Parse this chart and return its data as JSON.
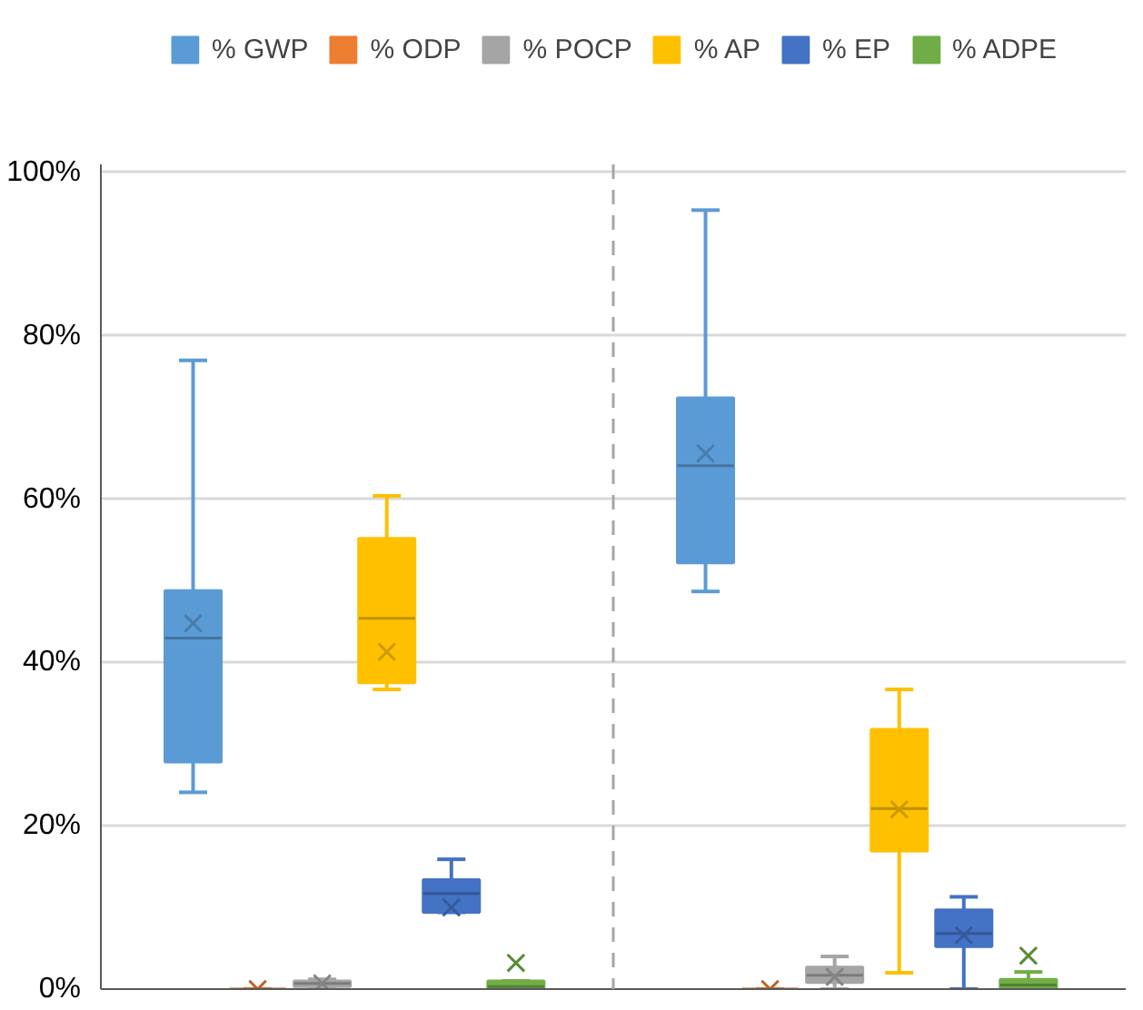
{
  "chart_data": {
    "type": "box",
    "categories": [
      null,
      null
    ],
    "ylim": [
      0,
      101
    ],
    "yticks": [
      {
        "value": 0,
        "label": "0%"
      },
      {
        "value": 20,
        "label": "20%"
      },
      {
        "value": 40,
        "label": "40%"
      },
      {
        "value": 60,
        "label": "60%"
      },
      {
        "value": 80,
        "label": "80%"
      },
      {
        "value": 100,
        "label": "100%"
      }
    ],
    "grid": "y",
    "legend": "top",
    "marker": "cross",
    "series": [
      {
        "name": "% GWP",
        "color": "#5b9bd5",
        "boxes": [
          {
            "low": 24.1,
            "q1": 27.8,
            "median": 43,
            "q3": 48.8,
            "high": 77,
            "mean": 44.8
          },
          {
            "low": 48.7,
            "q1": 52.2,
            "median": 64.1,
            "q3": 72.4,
            "high": 95.4,
            "mean": 65.6
          }
        ]
      },
      {
        "name": "% ODP",
        "color": "#ed7d31",
        "boxes": [
          {
            "low": 0,
            "q1": 0,
            "median": 0,
            "q3": 0,
            "high": 0,
            "mean": 0
          },
          {
            "low": 0,
            "q1": 0,
            "median": 0,
            "q3": 0,
            "high": 0,
            "mean": 0
          }
        ]
      },
      {
        "name": "% POCP",
        "color": "#a5a5a5",
        "boxes": [
          {
            "low": 0.3,
            "q1": 0.3,
            "median": 0.7,
            "q3": 1.0,
            "high": 1.2,
            "mean": 0.7
          },
          {
            "low": 0,
            "q1": 0.8,
            "median": 1.7,
            "q3": 2.7,
            "high": 4.0,
            "mean": 1.5
          }
        ]
      },
      {
        "name": "% AP",
        "color": "#ffc000",
        "boxes": [
          {
            "low": 36.7,
            "q1": 37.5,
            "median": 45.4,
            "q3": 55.2,
            "high": 60.4,
            "mean": 41.3
          },
          {
            "low": 2.0,
            "q1": 16.9,
            "median": 22.1,
            "q3": 31.8,
            "high": 36.7,
            "mean": 22.0
          }
        ]
      },
      {
        "name": "% EP",
        "color": "#4472c4",
        "boxes": [
          {
            "low": 9.4,
            "q1": 9.4,
            "median": 11.7,
            "q3": 13.4,
            "high": 15.9,
            "mean": 10.0
          },
          {
            "low": 0,
            "q1": 5.2,
            "median": 6.8,
            "q3": 9.7,
            "high": 11.3,
            "mean": 6.6
          }
        ]
      },
      {
        "name": "% ADPE",
        "color": "#70ad47",
        "boxes": [
          {
            "low": 0,
            "q1": 0,
            "median": 0.3,
            "q3": 1.0,
            "high": 1.0,
            "mean": 3.2
          },
          {
            "low": 0,
            "q1": 0,
            "median": 0.5,
            "q3": 1.2,
            "high": 2.1,
            "mean": 4.1
          }
        ]
      }
    ]
  }
}
